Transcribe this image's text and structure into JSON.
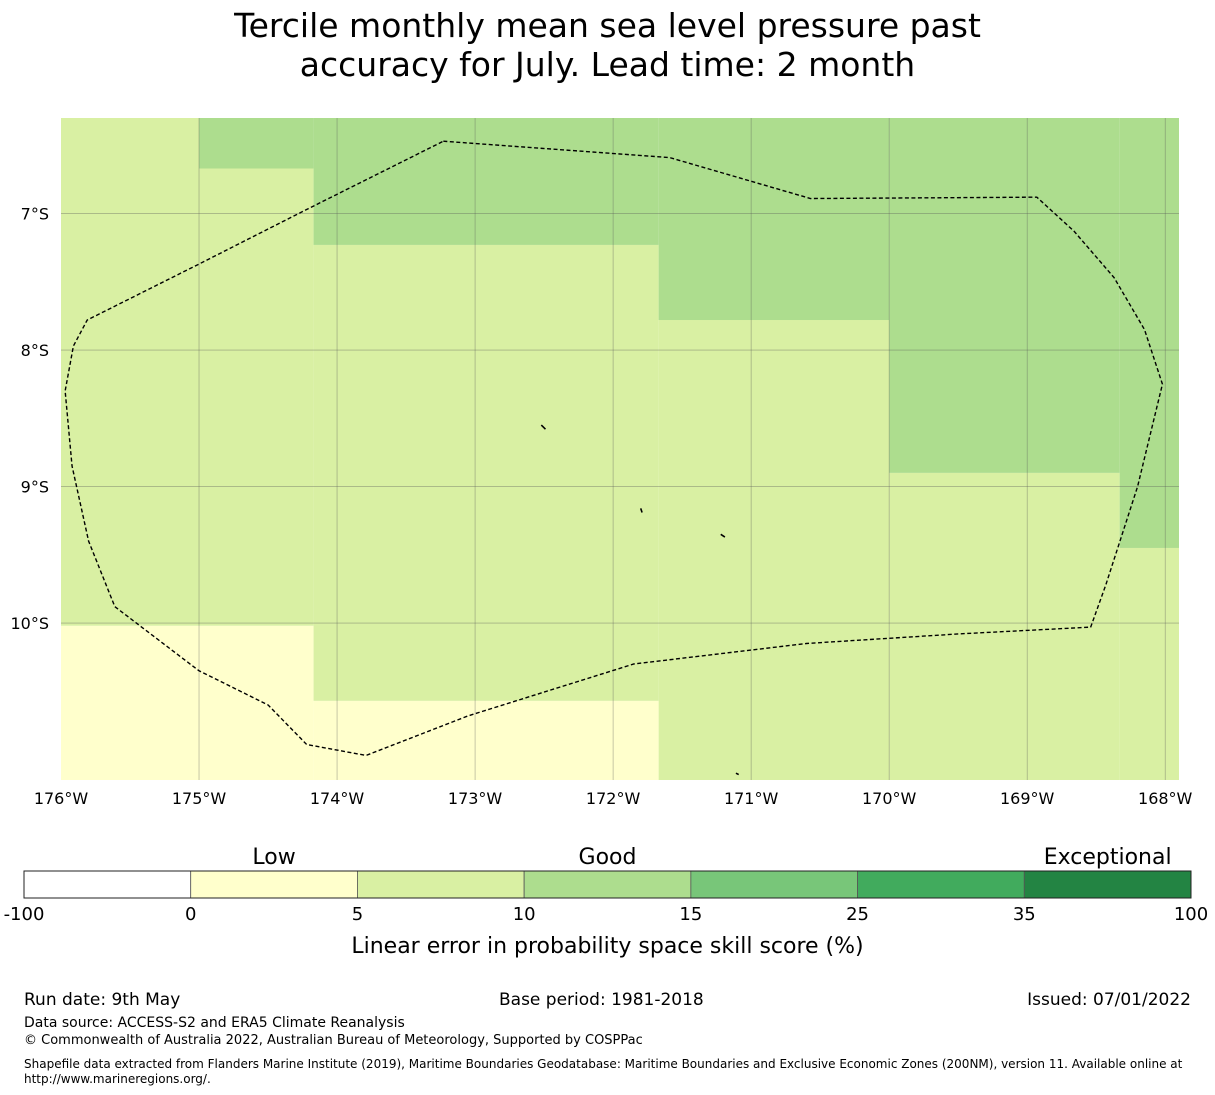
{
  "title": {
    "line1": "Tercile monthly mean sea level pressure past",
    "line2": "accuracy for July. Lead time: 2 month"
  },
  "map": {
    "lon_range": [
      -176,
      -167.9
    ],
    "lat_range": [
      -11.15,
      -6.3
    ],
    "lon_ticks": [
      {
        "value": -176,
        "label": "176°W"
      },
      {
        "value": -175,
        "label": "175°W"
      },
      {
        "value": -174,
        "label": "174°W"
      },
      {
        "value": -173,
        "label": "173°W"
      },
      {
        "value": -172,
        "label": "172°W"
      },
      {
        "value": -171,
        "label": "171°W"
      },
      {
        "value": -170,
        "label": "170°W"
      },
      {
        "value": -169,
        "label": "169°W"
      },
      {
        "value": -168,
        "label": "168°W"
      }
    ],
    "lat_ticks": [
      {
        "value": -7,
        "label": "7°S"
      },
      {
        "value": -8,
        "label": "8°S"
      },
      {
        "value": -9,
        "label": "9°S"
      },
      {
        "value": -10,
        "label": "10°S"
      }
    ],
    "grid": true,
    "cells": [
      {
        "lon": [
          -176,
          -175
        ],
        "lat": [
          -11.15,
          -10.02
        ],
        "class": "0-5"
      },
      {
        "lon": [
          -176,
          -175
        ],
        "lat": [
          -10.02,
          -6.3
        ],
        "class": "5-10"
      },
      {
        "lon": [
          -175,
          -174.17
        ],
        "lat": [
          -11.15,
          -10.02
        ],
        "class": "0-5"
      },
      {
        "lon": [
          -175,
          -174.17
        ],
        "lat": [
          -10.02,
          -6.67
        ],
        "class": "5-10"
      },
      {
        "lon": [
          -175,
          -174.17
        ],
        "lat": [
          -6.67,
          -6.3
        ],
        "class": "10-15"
      },
      {
        "lon": [
          -174.17,
          -171.67
        ],
        "lat": [
          -11.15,
          -10.57
        ],
        "class": "0-5"
      },
      {
        "lon": [
          -174.17,
          -171.67
        ],
        "lat": [
          -10.57,
          -7.23
        ],
        "class": "5-10"
      },
      {
        "lon": [
          -174.17,
          -171.67
        ],
        "lat": [
          -7.23,
          -6.3
        ],
        "class": "10-15"
      },
      {
        "lon": [
          -171.67,
          -170
        ],
        "lat": [
          -11.15,
          -7.78
        ],
        "class": "5-10"
      },
      {
        "lon": [
          -171.67,
          -170
        ],
        "lat": [
          -7.78,
          -6.3
        ],
        "class": "10-15"
      },
      {
        "lon": [
          -170,
          -168.33
        ],
        "lat": [
          -11.15,
          -8.9
        ],
        "class": "5-10"
      },
      {
        "lon": [
          -170,
          -168.33
        ],
        "lat": [
          -8.9,
          -6.3
        ],
        "class": "10-15"
      },
      {
        "lon": [
          -168.33,
          -167.9
        ],
        "lat": [
          -11.15,
          -9.45
        ],
        "class": "5-10"
      },
      {
        "lon": [
          -168.33,
          -167.9
        ],
        "lat": [
          -9.45,
          -6.3
        ],
        "class": "10-15"
      }
    ],
    "eez_boundary": [
      [
        -173.23,
        -6.47
      ],
      [
        -171.59,
        -6.59
      ],
      [
        -170.57,
        -6.89
      ],
      [
        -168.93,
        -6.88
      ],
      [
        -168.66,
        -7.13
      ],
      [
        -168.37,
        -7.47
      ],
      [
        -168.15,
        -7.85
      ],
      [
        -168.02,
        -8.25
      ],
      [
        -168.2,
        -9.0
      ],
      [
        -168.43,
        -9.72
      ],
      [
        -168.54,
        -10.03
      ],
      [
        -169.5,
        -10.08
      ],
      [
        -170.6,
        -10.15
      ],
      [
        -171.85,
        -10.3
      ],
      [
        -173.05,
        -10.68
      ],
      [
        -173.79,
        -10.97
      ],
      [
        -174.22,
        -10.89
      ],
      [
        -174.5,
        -10.6
      ],
      [
        -175.0,
        -10.35
      ],
      [
        -175.61,
        -9.88
      ],
      [
        -175.8,
        -9.4
      ],
      [
        -175.92,
        -8.85
      ],
      [
        -175.97,
        -8.3
      ],
      [
        -175.91,
        -7.97
      ],
      [
        -175.81,
        -7.78
      ],
      [
        -175.0,
        -7.37
      ],
      [
        -174.2,
        -6.96
      ],
      [
        -173.23,
        -6.47
      ]
    ],
    "islands": [
      [
        [
          -172.52,
          -8.55
        ],
        [
          -172.49,
          -8.58
        ]
      ],
      [
        [
          -171.8,
          -9.16
        ],
        [
          -171.79,
          -9.19
        ]
      ],
      [
        [
          -171.22,
          -9.35
        ],
        [
          -171.19,
          -9.37
        ]
      ],
      [
        [
          -171.11,
          -11.1
        ],
        [
          -171.09,
          -11.11
        ]
      ]
    ],
    "colors": {
      "land": "#000000",
      "boundary": "#000000",
      "grid": "#555555"
    }
  },
  "legend": {
    "categories": [
      {
        "label": "Low",
        "at": 2.5
      },
      {
        "label": "Good",
        "at": 12.5
      },
      {
        "label": "Exceptional",
        "at": 67.5
      }
    ],
    "bins": [
      {
        "from": -100,
        "to": 0,
        "color": "#ffffff"
      },
      {
        "from": 0,
        "to": 5,
        "color": "#ffffcc"
      },
      {
        "from": 5,
        "to": 10,
        "color": "#d9f0a3"
      },
      {
        "from": 10,
        "to": 15,
        "color": "#addd8e"
      },
      {
        "from": 15,
        "to": 25,
        "color": "#78c679"
      },
      {
        "from": 25,
        "to": 35,
        "color": "#41ab5d"
      },
      {
        "from": 35,
        "to": 100,
        "color": "#238443"
      }
    ],
    "tick_labels": [
      "-100",
      "0",
      "5",
      "10",
      "15",
      "25",
      "35",
      "100"
    ],
    "label": "Linear error in probability space skill score (%)"
  },
  "footer": {
    "run_date": "Run date: 9th May",
    "base_period": "Base period: 1981-2018",
    "issued": "Issued: 07/01/2022",
    "data_source": "Data source: ACCESS-S2 and ERA5 Climate Reanalysis",
    "copyright": "© Commonwealth of Australia 2022, Australian Bureau of Meteorology, Supported by COSPPac",
    "shapefile": "Shapefile data extracted from Flanders Marine Institute (2019), Maritime Boundaries Geodatabase: Maritime Boundaries and Exclusive Economic Zones (200NM), version 11. Available online at http://www.marineregions.org/."
  }
}
